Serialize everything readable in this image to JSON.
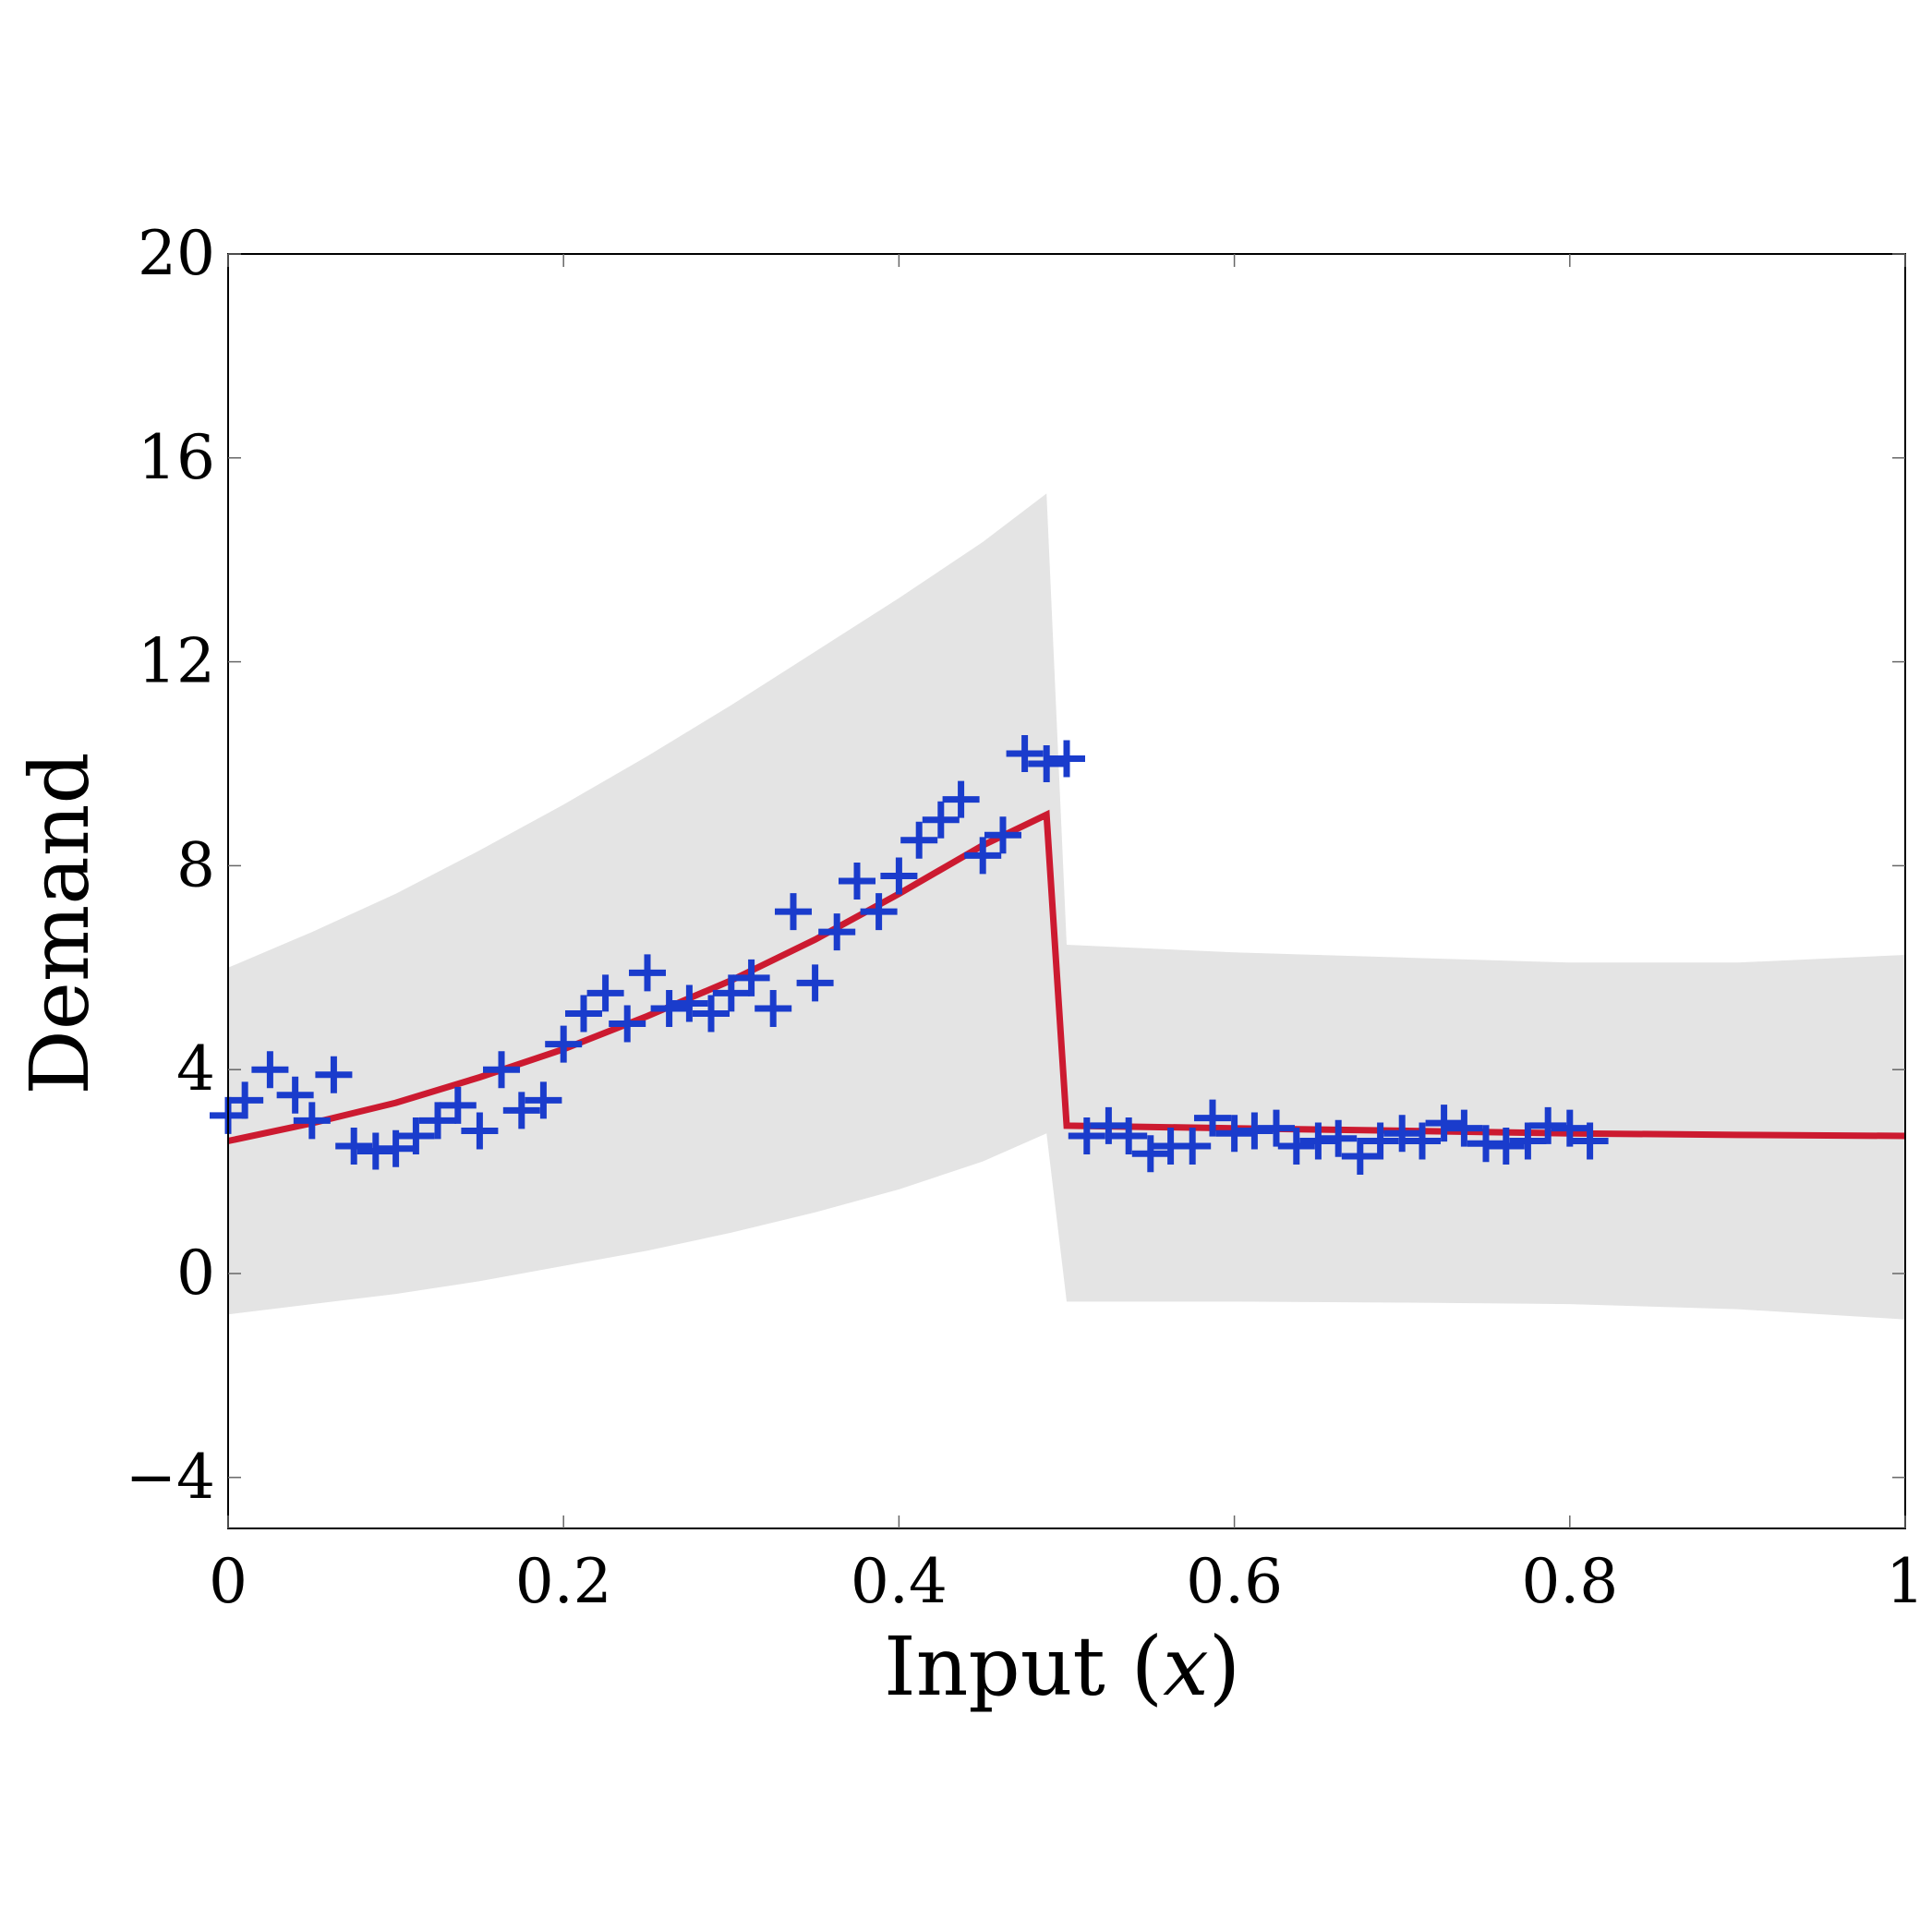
{
  "chart_data": {
    "type": "line",
    "xlabel_text": "Input (",
    "xlabel_var": "x",
    "xlabel_close": ")",
    "ylabel": "Demand",
    "xlim": [
      0,
      1
    ],
    "ylim": [
      -5,
      20
    ],
    "xticks": [
      0,
      0.2,
      0.4,
      0.6,
      0.8,
      1
    ],
    "xtick_labels": [
      "0",
      "0.2",
      "0.4",
      "0.6",
      "0.8",
      "1"
    ],
    "yticks": [
      -4,
      0,
      4,
      8,
      12,
      16,
      20
    ],
    "ytick_labels": [
      "−4",
      "0",
      "4",
      "8",
      "12",
      "16",
      "20"
    ],
    "colors": {
      "mean": "#cc1a30",
      "points": "#1a3ccc",
      "band": "#e4e4e4"
    },
    "mean_line": {
      "x": [
        0,
        0.05,
        0.1,
        0.15,
        0.2,
        0.25,
        0.3,
        0.35,
        0.4,
        0.45,
        0.488,
        0.5,
        0.6,
        0.7,
        0.8,
        0.9,
        1.0
      ],
      "y": [
        2.6,
        2.95,
        3.35,
        3.85,
        4.4,
        5.05,
        5.75,
        6.55,
        7.45,
        8.4,
        9.0,
        2.9,
        2.85,
        2.8,
        2.75,
        2.72,
        2.7
      ]
    },
    "confidence_band": {
      "x": [
        0,
        0.05,
        0.1,
        0.15,
        0.2,
        0.25,
        0.3,
        0.35,
        0.4,
        0.45,
        0.488,
        0.5,
        0.6,
        0.7,
        0.8,
        0.9,
        1.0
      ],
      "upper": [
        6.0,
        6.7,
        7.45,
        8.3,
        9.2,
        10.15,
        11.15,
        12.2,
        13.25,
        14.35,
        15.3,
        6.45,
        6.3,
        6.2,
        6.1,
        6.1,
        6.25
      ],
      "lower": [
        -0.8,
        -0.6,
        -0.4,
        -0.15,
        0.15,
        0.45,
        0.8,
        1.2,
        1.65,
        2.2,
        2.75,
        -0.55,
        -0.55,
        -0.57,
        -0.6,
        -0.7,
        -0.9
      ]
    },
    "points": {
      "x": [
        0.0,
        0.01,
        0.025,
        0.04,
        0.05,
        0.063,
        0.075,
        0.088,
        0.1,
        0.112,
        0.125,
        0.137,
        0.15,
        0.163,
        0.175,
        0.188,
        0.2,
        0.212,
        0.225,
        0.238,
        0.25,
        0.263,
        0.275,
        0.288,
        0.3,
        0.312,
        0.325,
        0.337,
        0.35,
        0.363,
        0.375,
        0.388,
        0.4,
        0.412,
        0.425,
        0.437,
        0.45,
        0.462,
        0.475,
        0.488,
        0.5,
        0.512,
        0.525,
        0.537,
        0.55,
        0.562,
        0.575,
        0.587,
        0.6,
        0.612,
        0.625,
        0.637,
        0.65,
        0.662,
        0.675,
        0.687,
        0.7,
        0.712,
        0.725,
        0.737,
        0.75,
        0.762,
        0.775,
        0.787,
        0.8,
        0.812
      ],
      "y": [
        3.1,
        3.4,
        4.0,
        3.5,
        3.0,
        3.9,
        2.5,
        2.4,
        2.45,
        2.7,
        3.0,
        3.3,
        2.8,
        4.0,
        3.2,
        3.4,
        4.5,
        5.1,
        5.5,
        4.9,
        5.9,
        5.2,
        5.3,
        5.1,
        5.5,
        5.8,
        5.2,
        7.1,
        5.7,
        6.7,
        7.7,
        7.1,
        7.8,
        8.5,
        8.9,
        9.3,
        8.2,
        8.6,
        10.2,
        10.0,
        10.1,
        2.7,
        2.9,
        2.7,
        2.35,
        2.5,
        2.5,
        3.05,
        2.75,
        2.8,
        2.85,
        2.5,
        2.6,
        2.65,
        2.3,
        2.6,
        2.75,
        2.6,
        2.95,
        2.85,
        2.55,
        2.5,
        2.6,
        2.9,
        2.85,
        2.6
      ]
    }
  }
}
